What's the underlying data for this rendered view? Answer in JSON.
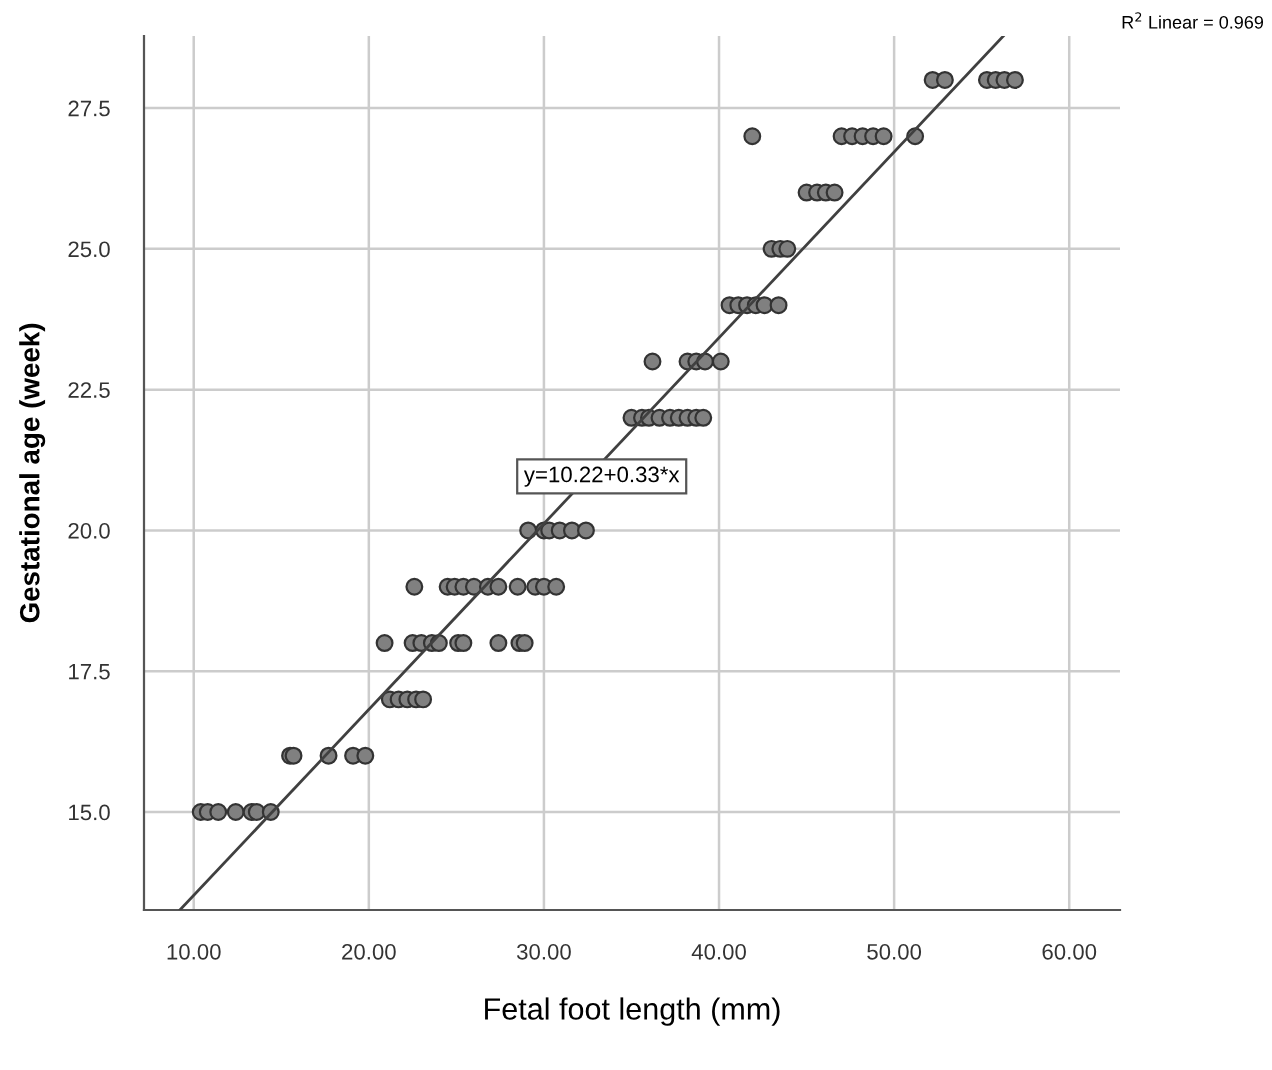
{
  "chart_data": {
    "type": "scatter",
    "xlabel": "Fetal foot length (mm)",
    "ylabel": "Gestational age (week)",
    "xlim": [
      7.16,
      62.9
    ],
    "ylim": [
      13.26,
      28.78
    ],
    "xticks": [
      {
        "value": 10,
        "label": "10.00"
      },
      {
        "value": 20,
        "label": "20.00"
      },
      {
        "value": 30,
        "label": "30.00"
      },
      {
        "value": 40,
        "label": "40.00"
      },
      {
        "value": 50,
        "label": "50.00"
      },
      {
        "value": 60,
        "label": "60.00"
      }
    ],
    "yticks": [
      {
        "value": 15,
        "label": "15.0"
      },
      {
        "value": 17.5,
        "label": "17.5"
      },
      {
        "value": 20,
        "label": "20.0"
      },
      {
        "value": 22.5,
        "label": "22.5"
      },
      {
        "value": 25,
        "label": "25.0"
      },
      {
        "value": 27.5,
        "label": "27.5"
      }
    ],
    "grid": true,
    "marker": "circle",
    "series": [
      {
        "color": "#808080",
        "x": [
          10.4,
          10.8,
          11.4,
          12.4,
          13.3,
          13.6,
          14.4,
          15.5,
          15.7,
          17.7,
          19.1,
          19.8,
          21.2,
          21.7,
          22.2,
          22.7,
          23.1,
          20.9,
          22.5,
          23.0,
          23.6,
          24.0,
          25.1,
          25.4,
          27.4,
          28.6,
          28.9,
          22.6,
          24.5,
          24.9,
          25.4,
          26.0,
          26.8,
          27.4,
          28.5,
          29.5,
          30.0,
          30.7,
          29.1,
          30.0,
          30.3,
          30.9,
          31.6,
          32.4,
          35.0,
          35.6,
          36.0,
          36.6,
          37.2,
          37.7,
          38.2,
          38.7,
          39.1,
          36.2,
          38.2,
          38.7,
          39.2,
          40.1,
          40.6,
          41.1,
          41.6,
          42.1,
          42.6,
          43.4,
          43.0,
          43.5,
          43.9,
          45.0,
          45.6,
          46.1,
          46.6,
          41.9,
          47.0,
          47.6,
          48.2,
          48.8,
          49.4,
          51.2,
          52.2,
          52.9,
          55.3,
          55.8,
          56.3,
          56.9
        ],
        "values": [
          15,
          15,
          15,
          15,
          15,
          15,
          15,
          16,
          16,
          16,
          16,
          16,
          17,
          17,
          17,
          17,
          17,
          18,
          18,
          18,
          18,
          18,
          18,
          18,
          18,
          18,
          18,
          19,
          19,
          19,
          19,
          19,
          19,
          19,
          19,
          19,
          19,
          19,
          20,
          20,
          20,
          20,
          20,
          20,
          22,
          22,
          22,
          22,
          22,
          22,
          22,
          22,
          22,
          23,
          23,
          23,
          23,
          23,
          24,
          24,
          24,
          24,
          24,
          24,
          25,
          25,
          25,
          26,
          26,
          26,
          26,
          27,
          27,
          27,
          27,
          27,
          27,
          27,
          28,
          28,
          28,
          28,
          28,
          28
        ]
      },
      {
        "type": "line",
        "color": "#404040",
        "marker": "none",
        "x": [
          9.21,
          56.24
        ],
        "values": [
          13.26,
          28.78
        ]
      }
    ],
    "annotations": [
      {
        "text": "y=10.22+0.33*x",
        "x": 33.3,
        "y": 20.96
      },
      "R$^{2}$ Linear = 0.969"
    ]
  }
}
